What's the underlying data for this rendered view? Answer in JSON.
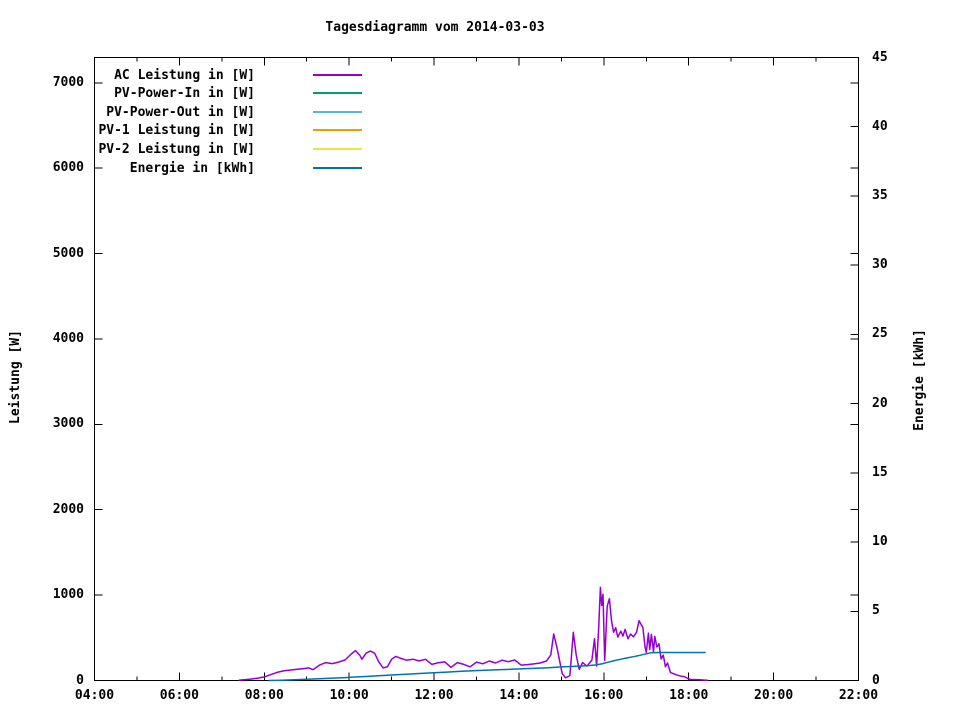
{
  "chart_data": {
    "type": "line",
    "title": "Tagesdiagramm vom 2014-03-03",
    "ylabel": "Leistung [W]",
    "y2label": "Energie [kWh]",
    "xlabel": "",
    "grid": false,
    "legend_position": "top-left-inside",
    "x_range_hours": [
      4,
      22
    ],
    "x_major_tick_hours": [
      4,
      6,
      8,
      10,
      12,
      14,
      16,
      18,
      20,
      22
    ],
    "x_major_tick_labels": [
      "04:00",
      "06:00",
      "08:00",
      "10:00",
      "12:00",
      "14:00",
      "16:00",
      "18:00",
      "20:00",
      "22:00"
    ],
    "x_minor_tick_hours": [
      5,
      7,
      9,
      11,
      13,
      15,
      17,
      19,
      21
    ],
    "y_range": [
      0,
      7297
    ],
    "y_ticks": [
      0,
      1000,
      2000,
      3000,
      4000,
      5000,
      6000,
      7000
    ],
    "y2_range": [
      0,
      45
    ],
    "y2_ticks": [
      0,
      5,
      10,
      15,
      20,
      25,
      30,
      35,
      40,
      45
    ],
    "series": [
      {
        "name": "AC Leistung in [W]",
        "color": "#9400d3",
        "axis": "y1",
        "points": [
          [
            7.4,
            4
          ],
          [
            7.55,
            10
          ],
          [
            7.7,
            18
          ],
          [
            7.85,
            28
          ],
          [
            8.0,
            42
          ],
          [
            8.15,
            68
          ],
          [
            8.3,
            95
          ],
          [
            8.45,
            112
          ],
          [
            8.6,
            122
          ],
          [
            8.75,
            130
          ],
          [
            8.9,
            138
          ],
          [
            9.05,
            148
          ],
          [
            9.15,
            126
          ],
          [
            9.3,
            180
          ],
          [
            9.45,
            210
          ],
          [
            9.6,
            198
          ],
          [
            9.75,
            215
          ],
          [
            9.9,
            240
          ],
          [
            10.05,
            310
          ],
          [
            10.15,
            350
          ],
          [
            10.25,
            295
          ],
          [
            10.3,
            250
          ],
          [
            10.4,
            320
          ],
          [
            10.5,
            345
          ],
          [
            10.6,
            320
          ],
          [
            10.7,
            215
          ],
          [
            10.8,
            148
          ],
          [
            10.9,
            160
          ],
          [
            11.0,
            250
          ],
          [
            11.1,
            282
          ],
          [
            11.2,
            262
          ],
          [
            11.35,
            238
          ],
          [
            11.5,
            250
          ],
          [
            11.65,
            230
          ],
          [
            11.8,
            248
          ],
          [
            11.95,
            188
          ],
          [
            12.1,
            208
          ],
          [
            12.25,
            218
          ],
          [
            12.4,
            155
          ],
          [
            12.55,
            210
          ],
          [
            12.7,
            188
          ],
          [
            12.85,
            160
          ],
          [
            13.0,
            215
          ],
          [
            13.15,
            196
          ],
          [
            13.3,
            228
          ],
          [
            13.45,
            205
          ],
          [
            13.6,
            238
          ],
          [
            13.75,
            220
          ],
          [
            13.9,
            240
          ],
          [
            14.05,
            180
          ],
          [
            14.2,
            186
          ],
          [
            14.35,
            195
          ],
          [
            14.5,
            205
          ],
          [
            14.65,
            228
          ],
          [
            14.75,
            300
          ],
          [
            14.82,
            545
          ],
          [
            14.9,
            380
          ],
          [
            15.02,
            80
          ],
          [
            15.1,
            30
          ],
          [
            15.2,
            58
          ],
          [
            15.28,
            565
          ],
          [
            15.35,
            300
          ],
          [
            15.42,
            130
          ],
          [
            15.5,
            210
          ],
          [
            15.6,
            168
          ],
          [
            15.72,
            240
          ],
          [
            15.78,
            490
          ],
          [
            15.83,
            170
          ],
          [
            15.88,
            620
          ],
          [
            15.92,
            1090
          ],
          [
            15.95,
            880
          ],
          [
            15.98,
            1010
          ],
          [
            16.02,
            235
          ],
          [
            16.08,
            870
          ],
          [
            16.13,
            958
          ],
          [
            16.18,
            700
          ],
          [
            16.23,
            565
          ],
          [
            16.28,
            618
          ],
          [
            16.33,
            508
          ],
          [
            16.4,
            578
          ],
          [
            16.45,
            520
          ],
          [
            16.5,
            598
          ],
          [
            16.57,
            488
          ],
          [
            16.63,
            545
          ],
          [
            16.7,
            512
          ],
          [
            16.77,
            565
          ],
          [
            16.83,
            700
          ],
          [
            16.88,
            655
          ],
          [
            16.92,
            620
          ],
          [
            16.97,
            395
          ],
          [
            17.0,
            330
          ],
          [
            17.05,
            555
          ],
          [
            17.08,
            362
          ],
          [
            17.12,
            540
          ],
          [
            17.17,
            338
          ],
          [
            17.2,
            515
          ],
          [
            17.25,
            392
          ],
          [
            17.3,
            430
          ],
          [
            17.35,
            252
          ],
          [
            17.4,
            298
          ],
          [
            17.45,
            162
          ],
          [
            17.5,
            205
          ],
          [
            17.57,
            92
          ],
          [
            17.65,
            78
          ],
          [
            17.73,
            62
          ],
          [
            17.82,
            50
          ],
          [
            17.9,
            46
          ],
          [
            17.98,
            22
          ],
          [
            18.05,
            12
          ],
          [
            18.22,
            10
          ],
          [
            18.35,
            6
          ],
          [
            18.45,
            3
          ]
        ]
      },
      {
        "name": "PV-Power-In in [W]",
        "color": "#009e73",
        "axis": "y1",
        "points": []
      },
      {
        "name": "PV-Power-Out in [W]",
        "color": "#56b4e9",
        "axis": "y1",
        "points": []
      },
      {
        "name": "PV-1 Leistung in [W]",
        "color": "#e69f00",
        "axis": "y1",
        "points": []
      },
      {
        "name": "PV-2 Leistung in [W]",
        "color": "#f0e442",
        "axis": "y1",
        "points": []
      },
      {
        "name": "Energie in [kWh]",
        "color": "#0072b2",
        "axis": "y2",
        "points": [
          [
            8.1,
            0.0
          ],
          [
            8.4,
            0.02
          ],
          [
            8.7,
            0.05
          ],
          [
            9.0,
            0.09
          ],
          [
            9.3,
            0.13
          ],
          [
            9.6,
            0.17
          ],
          [
            9.9,
            0.21
          ],
          [
            10.2,
            0.26
          ],
          [
            10.5,
            0.31
          ],
          [
            10.8,
            0.36
          ],
          [
            11.1,
            0.41
          ],
          [
            11.4,
            0.46
          ],
          [
            11.7,
            0.51
          ],
          [
            12.0,
            0.56
          ],
          [
            12.3,
            0.61
          ],
          [
            12.6,
            0.66
          ],
          [
            12.9,
            0.7
          ],
          [
            13.2,
            0.74
          ],
          [
            13.5,
            0.78
          ],
          [
            13.8,
            0.81
          ],
          [
            14.1,
            0.85
          ],
          [
            14.4,
            0.88
          ],
          [
            14.7,
            0.92
          ],
          [
            15.0,
            0.98
          ],
          [
            15.3,
            1.02
          ],
          [
            15.6,
            1.07
          ],
          [
            15.8,
            1.12
          ],
          [
            15.95,
            1.2
          ],
          [
            16.1,
            1.32
          ],
          [
            16.25,
            1.44
          ],
          [
            16.4,
            1.54
          ],
          [
            16.55,
            1.63
          ],
          [
            16.7,
            1.72
          ],
          [
            16.85,
            1.82
          ],
          [
            17.0,
            1.93
          ],
          [
            17.1,
            2.0
          ],
          [
            17.3,
            2.02
          ],
          [
            18.4,
            2.02
          ]
        ]
      }
    ]
  }
}
